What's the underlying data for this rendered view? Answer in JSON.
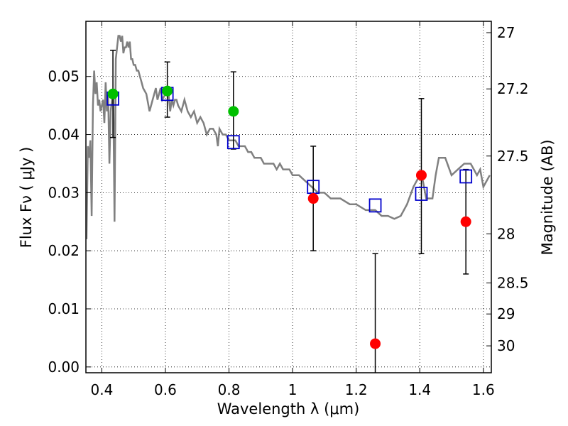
{
  "chart_data": {
    "type": "scatter",
    "xlabel": "Wavelength λ (μm)",
    "ylabel": "Flux Fν ( μJy )",
    "ylabel_right": "Magnitude (AB)",
    "xlim": [
      0.35,
      1.625
    ],
    "ylim": [
      -0.001,
      0.0595
    ],
    "x_ticks": [
      0.4,
      0.6,
      0.8,
      1.0,
      1.2,
      1.4,
      1.6
    ],
    "x_tick_labels": [
      "0.4",
      "0.6",
      "0.8",
      "1",
      "1.2",
      "1.4",
      "1.6"
    ],
    "y_ticks": [
      0.0,
      0.01,
      0.02,
      0.03,
      0.04,
      0.05
    ],
    "y_tick_labels": [
      "0.00",
      "0.01",
      "0.02",
      "0.03",
      "0.04",
      "0.05"
    ],
    "right_ticks": [
      27,
      27.2,
      27.5,
      28,
      28.5,
      29,
      30
    ],
    "right_tick_labels": [
      "27",
      "27.2",
      "27.5",
      "28",
      "28.5",
      "29",
      "30"
    ],
    "grid": true,
    "colors": {
      "model_line": "#808080",
      "green_points": "#00c000",
      "red_points": "#ff0000",
      "model_boxes": "#0000cc",
      "error_bars": "#000000"
    },
    "model_spectrum": {
      "x": [
        0.352,
        0.356,
        0.36,
        0.364,
        0.368,
        0.372,
        0.376,
        0.38,
        0.384,
        0.388,
        0.392,
        0.396,
        0.4,
        0.404,
        0.408,
        0.412,
        0.416,
        0.42,
        0.424,
        0.428,
        0.432,
        0.436,
        0.44,
        0.444,
        0.448,
        0.452,
        0.456,
        0.46,
        0.464,
        0.468,
        0.472,
        0.476,
        0.48,
        0.484,
        0.488,
        0.492,
        0.496,
        0.5,
        0.505,
        0.51,
        0.515,
        0.52,
        0.525,
        0.53,
        0.54,
        0.55,
        0.56,
        0.57,
        0.575,
        0.58,
        0.585,
        0.59,
        0.6,
        0.61,
        0.615,
        0.62,
        0.625,
        0.63,
        0.635,
        0.64,
        0.65,
        0.66,
        0.67,
        0.68,
        0.69,
        0.7,
        0.71,
        0.72,
        0.73,
        0.74,
        0.75,
        0.76,
        0.765,
        0.77,
        0.78,
        0.79,
        0.8,
        0.81,
        0.82,
        0.83,
        0.84,
        0.85,
        0.86,
        0.87,
        0.88,
        0.89,
        0.9,
        0.91,
        0.92,
        0.93,
        0.94,
        0.95,
        0.96,
        0.97,
        0.98,
        0.99,
        1.0,
        1.02,
        1.04,
        1.06,
        1.08,
        1.1,
        1.12,
        1.15,
        1.18,
        1.2,
        1.23,
        1.26,
        1.28,
        1.3,
        1.32,
        1.34,
        1.36,
        1.38,
        1.4,
        1.41,
        1.42,
        1.43,
        1.44,
        1.45,
        1.46,
        1.48,
        1.5,
        1.52,
        1.54,
        1.55,
        1.56,
        1.57,
        1.58,
        1.59,
        1.6,
        1.61,
        1.62
      ],
      "y": [
        0.022,
        0.038,
        0.036,
        0.039,
        0.026,
        0.045,
        0.051,
        0.047,
        0.049,
        0.045,
        0.046,
        0.044,
        0.045,
        0.046,
        0.042,
        0.049,
        0.044,
        0.047,
        0.035,
        0.044,
        0.046,
        0.047,
        0.025,
        0.053,
        0.055,
        0.057,
        0.057,
        0.056,
        0.057,
        0.054,
        0.055,
        0.055,
        0.056,
        0.055,
        0.056,
        0.053,
        0.053,
        0.052,
        0.052,
        0.051,
        0.051,
        0.05,
        0.049,
        0.048,
        0.047,
        0.044,
        0.046,
        0.048,
        0.046,
        0.047,
        0.048,
        0.046,
        0.047,
        0.047,
        0.044,
        0.046,
        0.045,
        0.046,
        0.046,
        0.045,
        0.044,
        0.046,
        0.044,
        0.043,
        0.044,
        0.042,
        0.043,
        0.042,
        0.04,
        0.041,
        0.041,
        0.04,
        0.038,
        0.041,
        0.04,
        0.04,
        0.039,
        0.039,
        0.039,
        0.038,
        0.038,
        0.038,
        0.037,
        0.037,
        0.036,
        0.036,
        0.036,
        0.035,
        0.035,
        0.035,
        0.035,
        0.034,
        0.035,
        0.034,
        0.034,
        0.034,
        0.033,
        0.033,
        0.032,
        0.031,
        0.03,
        0.03,
        0.029,
        0.029,
        0.028,
        0.028,
        0.027,
        0.027,
        0.026,
        0.026,
        0.0255,
        0.026,
        0.028,
        0.031,
        0.033,
        0.032,
        0.029,
        0.029,
        0.029,
        0.033,
        0.036,
        0.036,
        0.033,
        0.034,
        0.035,
        0.035,
        0.035,
        0.034,
        0.033,
        0.034,
        0.031,
        0.032,
        0.033
      ]
    },
    "observed_green": [
      {
        "x": 0.435,
        "y": 0.047,
        "yerr_low": 0.0395,
        "yerr_high": 0.0545
      },
      {
        "x": 0.606,
        "y": 0.0475,
        "yerr_low": 0.043,
        "yerr_high": 0.0525
      },
      {
        "x": 0.814,
        "y": 0.044,
        "yerr_low": 0.0375,
        "yerr_high": 0.0508
      }
    ],
    "observed_red": [
      {
        "x": 1.065,
        "y": 0.029,
        "yerr_low": 0.02,
        "yerr_high": 0.038
      },
      {
        "x": 1.26,
        "y": 0.004,
        "yerr_low": null,
        "yerr_high": 0.0195
      },
      {
        "x": 1.405,
        "y": 0.033,
        "yerr_low": 0.0195,
        "yerr_high": 0.0462
      },
      {
        "x": 1.545,
        "y": 0.025,
        "yerr_low": 0.016,
        "yerr_high": 0.034
      }
    ],
    "model_photometry": [
      {
        "x": 0.435,
        "y": 0.0462
      },
      {
        "x": 0.606,
        "y": 0.047
      },
      {
        "x": 0.814,
        "y": 0.0387
      },
      {
        "x": 1.065,
        "y": 0.031
      },
      {
        "x": 1.26,
        "y": 0.0278
      },
      {
        "x": 1.405,
        "y": 0.0298
      },
      {
        "x": 1.545,
        "y": 0.0328
      }
    ]
  }
}
